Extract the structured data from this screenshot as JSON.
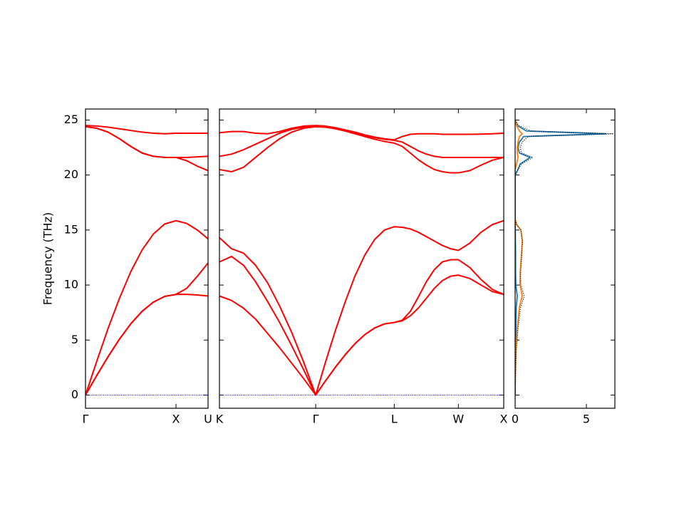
{
  "chart_data": [
    {
      "type": "line",
      "y_label": "Frequency (THz)",
      "ylim": [
        -1.2,
        26
      ],
      "yticks": [
        0,
        5,
        10,
        15,
        20,
        25
      ],
      "xlim": [
        0,
        1.354
      ],
      "xticks": [
        {
          "value": 0,
          "label": "Γ"
        },
        {
          "value": 1,
          "label": "X"
        },
        {
          "value": 1.354,
          "label": "U"
        }
      ],
      "hline": 0,
      "hline_color": "#0000cc",
      "x": [
        0,
        0.125,
        0.25,
        0.375,
        0.5,
        0.625,
        0.75,
        0.875,
        1,
        1.118,
        1.236,
        1.354
      ],
      "series": [
        {
          "color": "#ff0000",
          "values": [
            0,
            1.79,
            3.5,
            5.08,
            6.47,
            7.61,
            8.45,
            8.97,
            9.15,
            9.7,
            10.8,
            12.0
          ]
        },
        {
          "color": "#ff0000",
          "values": [
            0,
            1.79,
            3.5,
            5.08,
            6.47,
            7.61,
            8.45,
            8.97,
            9.15,
            9.15,
            9.1,
            9.0
          ]
        },
        {
          "color": "#ff0000",
          "values": [
            0,
            3.09,
            6.07,
            8.79,
            11.21,
            13.18,
            14.64,
            15.55,
            15.85,
            15.6,
            15.0,
            14.2
          ]
        },
        {
          "color": "#ff0000",
          "values": [
            24.5,
            24.45,
            24.35,
            24.2,
            24.05,
            23.9,
            23.8,
            23.75,
            23.8,
            23.8,
            23.8,
            23.8
          ]
        },
        {
          "color": "#ff0000",
          "values": [
            24.4,
            24.25,
            23.9,
            23.3,
            22.6,
            22.0,
            21.7,
            21.6,
            21.6,
            21.6,
            21.65,
            21.7
          ]
        },
        {
          "color": "#ff0000",
          "values": [
            24.4,
            24.25,
            23.9,
            23.3,
            22.6,
            22.0,
            21.7,
            21.6,
            21.6,
            21.3,
            20.8,
            20.4
          ]
        }
      ]
    },
    {
      "type": "line",
      "ylim": [
        -1.2,
        26
      ],
      "yticks": [
        0,
        5,
        10,
        15,
        20,
        25
      ],
      "xlim": [
        1.354,
        4.488
      ],
      "xticks": [
        {
          "value": 1.354,
          "label": "K"
        },
        {
          "value": 2.415,
          "label": "Γ"
        },
        {
          "value": 3.281,
          "label": "L"
        },
        {
          "value": 3.988,
          "label": "W"
        },
        {
          "value": 4.488,
          "label": "X"
        }
      ],
      "hline": 0,
      "hline_color": "#0000cc",
      "x": [
        1.354,
        1.487,
        1.619,
        1.752,
        1.885,
        2.017,
        2.15,
        2.282,
        2.415,
        2.523,
        2.632,
        2.74,
        2.848,
        2.956,
        3.065,
        3.173,
        3.281,
        3.369,
        3.458,
        3.546,
        3.635,
        3.723,
        3.811,
        3.9,
        3.988,
        4.113,
        4.238,
        4.363,
        4.488
      ],
      "series": [
        {
          "color": "#ff0000",
          "values": [
            9.0,
            8.6,
            7.9,
            6.9,
            5.6,
            4.3,
            2.9,
            1.5,
            0,
            1.29,
            2.53,
            3.66,
            4.67,
            5.49,
            6.1,
            6.47,
            6.6,
            6.75,
            7.2,
            7.9,
            8.8,
            9.7,
            10.4,
            10.8,
            10.9,
            10.6,
            10.0,
            9.4,
            9.15
          ]
        },
        {
          "color": "#ff0000",
          "values": [
            12.1,
            12.6,
            11.8,
            10.3,
            8.5,
            6.6,
            4.5,
            2.3,
            0,
            1.29,
            2.53,
            3.66,
            4.67,
            5.49,
            6.1,
            6.47,
            6.6,
            6.8,
            7.6,
            8.9,
            10.3,
            11.4,
            12.1,
            12.3,
            12.3,
            11.6,
            10.5,
            9.6,
            9.15
          ]
        },
        {
          "color": "#ff0000",
          "values": [
            14.3,
            13.3,
            12.9,
            11.8,
            10.2,
            8.1,
            5.7,
            3.0,
            0,
            2.99,
            5.86,
            8.47,
            10.82,
            12.72,
            14.14,
            15.0,
            15.3,
            15.25,
            15.1,
            14.8,
            14.4,
            14.0,
            13.6,
            13.3,
            13.15,
            13.8,
            14.8,
            15.5,
            15.85
          ]
        },
        {
          "color": "#ff0000",
          "values": [
            20.5,
            20.3,
            20.7,
            21.6,
            22.5,
            23.3,
            23.9,
            24.25,
            24.4,
            24.35,
            24.2,
            24.0,
            23.75,
            23.5,
            23.25,
            23.05,
            22.9,
            22.6,
            22.0,
            21.4,
            20.9,
            20.5,
            20.3,
            20.2,
            20.2,
            20.4,
            20.9,
            21.35,
            21.6
          ]
        },
        {
          "color": "#ff0000",
          "values": [
            21.7,
            21.9,
            22.3,
            22.8,
            23.3,
            23.8,
            24.15,
            24.35,
            24.4,
            24.35,
            24.25,
            24.05,
            23.85,
            23.6,
            23.4,
            23.25,
            23.15,
            23.0,
            22.6,
            22.2,
            21.9,
            21.7,
            21.6,
            21.6,
            21.6,
            21.6,
            21.6,
            21.6,
            21.6
          ]
        },
        {
          "color": "#ff0000",
          "values": [
            23.85,
            23.95,
            23.95,
            23.8,
            23.75,
            23.95,
            24.25,
            24.45,
            24.5,
            24.45,
            24.3,
            24.1,
            23.9,
            23.65,
            23.45,
            23.3,
            23.2,
            23.5,
            23.7,
            23.75,
            23.75,
            23.75,
            23.7,
            23.7,
            23.7,
            23.7,
            23.72,
            23.75,
            23.8
          ]
        }
      ]
    },
    {
      "type": "dos",
      "ylim": [
        -1.2,
        26
      ],
      "yticks": [
        0,
        5,
        10,
        15,
        20,
        25
      ],
      "xlim": [
        0,
        7
      ],
      "xticks": [
        0,
        5
      ],
      "frequency": [
        0,
        2,
        4,
        6,
        8,
        9,
        10,
        11,
        12,
        13,
        14,
        15,
        15.5,
        16,
        20,
        20.5,
        21,
        21.6,
        22,
        22.5,
        23,
        23.5,
        23.75,
        24,
        24.5,
        25
      ],
      "series": [
        {
          "color": "#1f77b4",
          "style": "solid",
          "values": [
            0,
            0.01,
            0.03,
            0.05,
            0.08,
            0.15,
            0.05,
            0.03,
            0.03,
            0.03,
            0.02,
            0.01,
            0,
            0,
            0,
            0.2,
            0.35,
            1.05,
            0.3,
            0.2,
            0.3,
            0.6,
            6.4,
            0.8,
            0.15,
            0
          ]
        },
        {
          "color": "#ff7f0e",
          "style": "solid",
          "values": [
            0,
            0.02,
            0.05,
            0.15,
            0.3,
            0.5,
            0.35,
            0.35,
            0.4,
            0.45,
            0.5,
            0.4,
            0.1,
            0,
            0,
            0,
            0.1,
            0.2,
            0.15,
            0.15,
            0.2,
            0.3,
            0.5,
            0.3,
            0.1,
            0
          ]
        },
        {
          "color": "#000000",
          "style": "dotted",
          "values": [
            0,
            0.03,
            0.08,
            0.2,
            0.38,
            0.65,
            0.4,
            0.38,
            0.43,
            0.48,
            0.52,
            0.41,
            0.1,
            0,
            0,
            0.2,
            0.45,
            1.25,
            0.45,
            0.35,
            0.5,
            0.9,
            6.9,
            1.1,
            0.25,
            0
          ]
        }
      ]
    }
  ]
}
